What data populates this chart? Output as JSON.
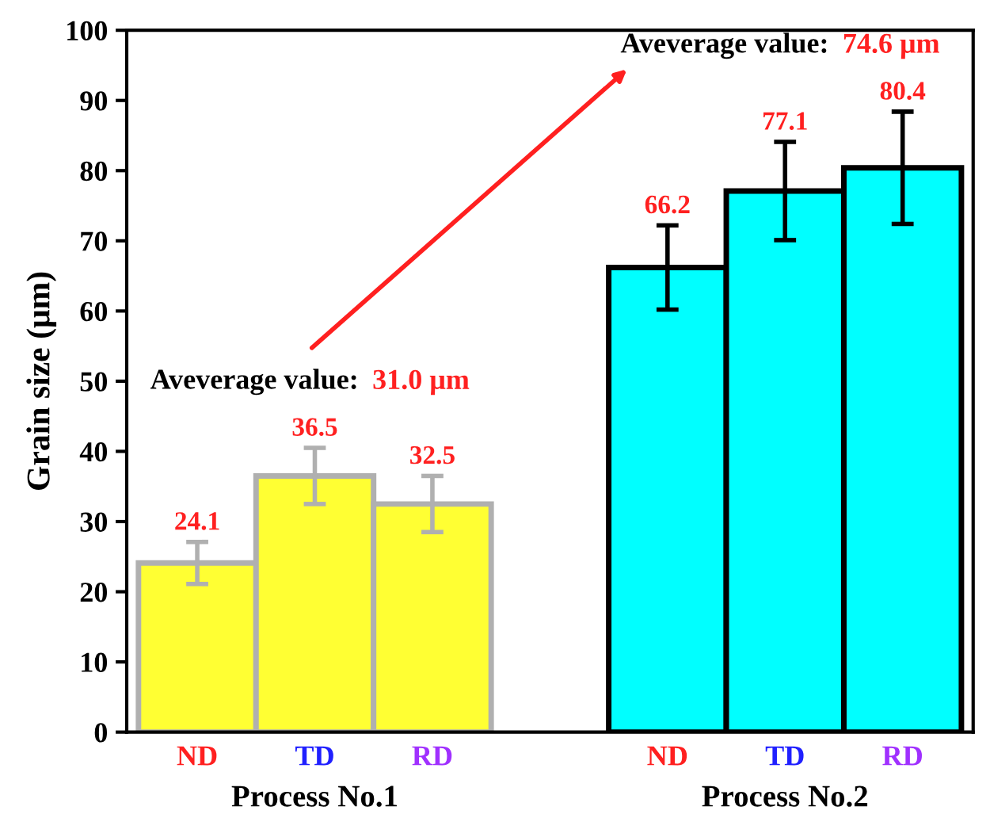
{
  "chart_data": {
    "type": "bar",
    "ylabel": "Grain size (μm)",
    "categories": [
      "ND",
      "TD",
      "RD",
      null,
      "ND",
      "TD",
      "RD"
    ],
    "values": [
      24.1,
      36.5,
      32.5,
      null,
      66.2,
      77.1,
      80.4
    ],
    "errors": [
      3,
      4,
      4,
      null,
      6,
      7,
      8
    ],
    "colors": [
      "#ffff33",
      "#ffff33",
      "#ffff33",
      null,
      "#00ffff",
      "#00ffff",
      "#00ffff"
    ],
    "data_labels": true,
    "ylim": [
      0,
      100
    ],
    "yticks": [
      0,
      10,
      20,
      30,
      40,
      50,
      60,
      70,
      80,
      90,
      100
    ],
    "grid": false,
    "legend": false,
    "annotations": [
      "Aveverage value: 31.0 μm",
      "Aveverage value: 74.6 μm",
      "Process No.1",
      "Process No.2"
    ]
  }
}
